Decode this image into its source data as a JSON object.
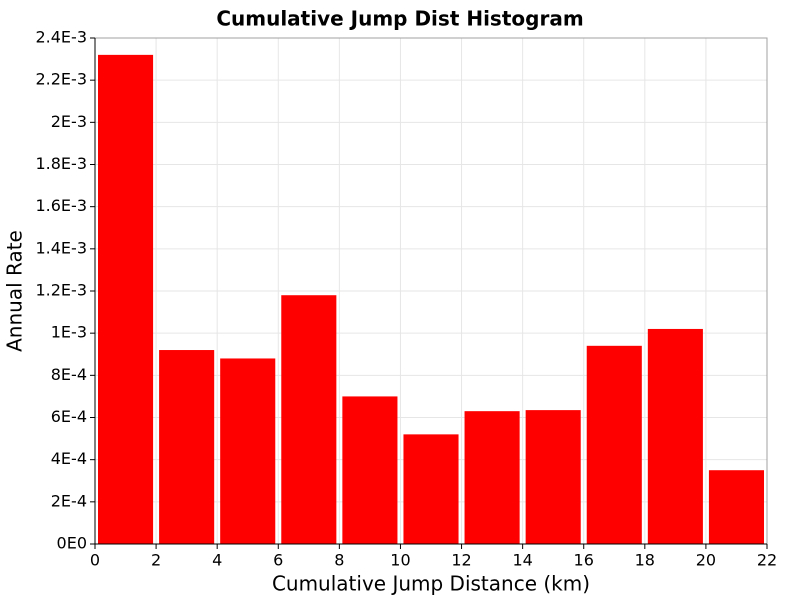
{
  "chart_data": {
    "type": "bar",
    "title": "Cumulative Jump Dist Histogram",
    "xlabel": "Cumulative Jump Distance (km)",
    "ylabel": "Annual Rate",
    "xlim": [
      0,
      22
    ],
    "ylim": [
      0,
      0.0024
    ],
    "x_ticks": [
      0,
      2,
      4,
      6,
      8,
      10,
      12,
      14,
      16,
      18,
      20,
      22
    ],
    "x_tick_labels": [
      "0",
      "2",
      "4",
      "6",
      "8",
      "10",
      "12",
      "14",
      "16",
      "18",
      "20",
      "22"
    ],
    "y_ticks": [
      0,
      0.0002,
      0.0004,
      0.0006,
      0.0008,
      0.001,
      0.0012,
      0.0014,
      0.0016,
      0.0018,
      0.002,
      0.0022,
      0.0024
    ],
    "y_tick_labels": [
      "0E0",
      "2E-4",
      "4E-4",
      "6E-4",
      "8E-4",
      "1E-3",
      "1.2E-3",
      "1.4E-3",
      "1.6E-3",
      "1.8E-3",
      "2E-3",
      "2.2E-3",
      "2.4E-3"
    ],
    "grid": true,
    "bin_width": 2,
    "bins": [
      {
        "x0": 0,
        "x1": 2,
        "value": 0.00232
      },
      {
        "x0": 2,
        "x1": 4,
        "value": 0.00092
      },
      {
        "x0": 4,
        "x1": 6,
        "value": 0.00088
      },
      {
        "x0": 6,
        "x1": 8,
        "value": 0.00118
      },
      {
        "x0": 8,
        "x1": 10,
        "value": 0.0007
      },
      {
        "x0": 10,
        "x1": 12,
        "value": 0.00052
      },
      {
        "x0": 12,
        "x1": 14,
        "value": 0.00063
      },
      {
        "x0": 14,
        "x1": 16,
        "value": 0.000635
      },
      {
        "x0": 16,
        "x1": 18,
        "value": 0.00094
      },
      {
        "x0": 18,
        "x1": 20,
        "value": 0.00102
      },
      {
        "x0": 20,
        "x1": 22,
        "value": 0.00035
      }
    ],
    "colors": {
      "bar": "#ff0000",
      "grid": "#e6e6e6",
      "frame": "#a0a0a0",
      "axis": "#000000"
    }
  }
}
